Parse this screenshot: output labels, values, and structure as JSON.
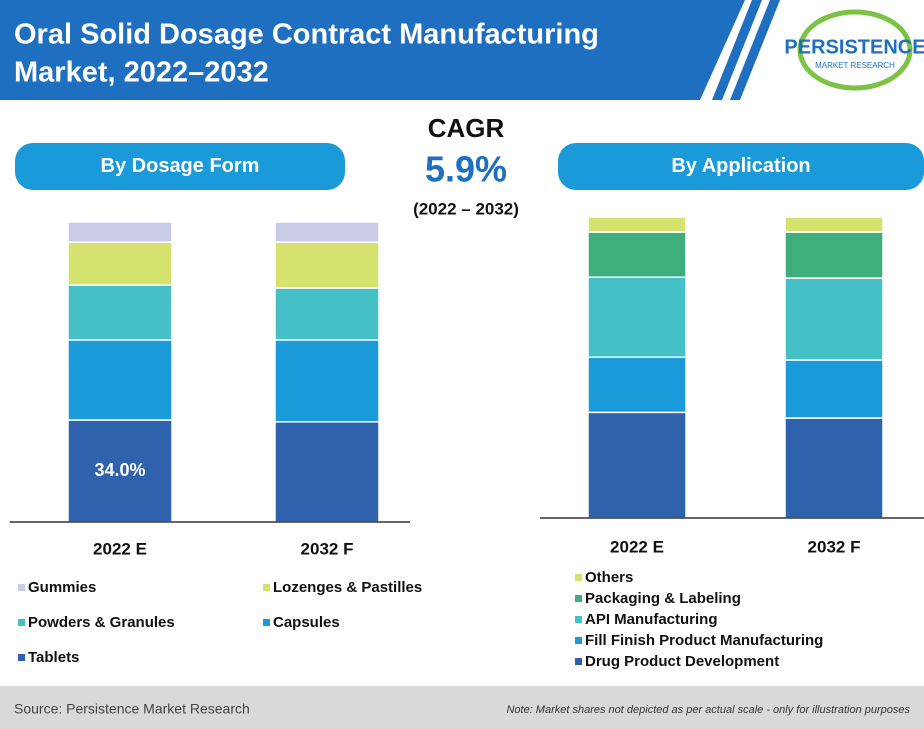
{
  "header": {
    "title_lines": [
      "Oral Solid Dosage Contract Manufacturing",
      "Market, 2022–2032"
    ],
    "logo": "PERSISTENCE",
    "logo_sub": "MARKET RESEARCH"
  },
  "cagr": {
    "label": "CAGR",
    "value": "5.9%",
    "period": "(2022 – 2032)"
  },
  "chart_data": [
    {
      "type": "bar",
      "stacked": true,
      "title": "By Dosage Form",
      "categories": [
        "2022 E",
        "2032 F"
      ],
      "series": [
        {
          "name": "Gummies",
          "color": "#c9cbe6",
          "values": [
            6.7,
            6.7
          ]
        },
        {
          "name": "Lozenges & Pastilles",
          "color": "#d6e26e",
          "values": [
            14.3,
            15.3
          ]
        },
        {
          "name": "Powders & Granules",
          "color": "#45c0c6",
          "values": [
            18.3,
            17.3
          ]
        },
        {
          "name": "Capsules",
          "color": "#1a9ad8",
          "values": [
            26.7,
            27.3
          ]
        },
        {
          "name": "Tablets",
          "color": "#2f62ad",
          "values": [
            34.0,
            33.4
          ],
          "value_labels": [
            "34.0%",
            null
          ]
        }
      ]
    },
    {
      "type": "bar",
      "stacked": true,
      "title": "By Application",
      "categories": [
        "2022 E",
        "2032 F"
      ],
      "series": [
        {
          "name": "Others",
          "color": "#d6e26e",
          "values": [
            5,
            5
          ]
        },
        {
          "name": "Packaging & Labeling",
          "color": "#3fae7d",
          "values": [
            15,
            15.3
          ]
        },
        {
          "name": "API Manufacturing",
          "color": "#45c0c6",
          "values": [
            26.6,
            27.2
          ]
        },
        {
          "name": "Fill Finish Product Manufacturing",
          "color": "#1a9ad8",
          "values": [
            18.3,
            19.3
          ]
        },
        {
          "name": "Drug Product Development",
          "color": "#2f62ad",
          "values": [
            35.1,
            33.2
          ]
        }
      ]
    }
  ],
  "footer": {
    "source": "Source: Persistence Market Research",
    "note": "Note: Market shares not depicted as per actual scale - only for illustration purposes"
  }
}
